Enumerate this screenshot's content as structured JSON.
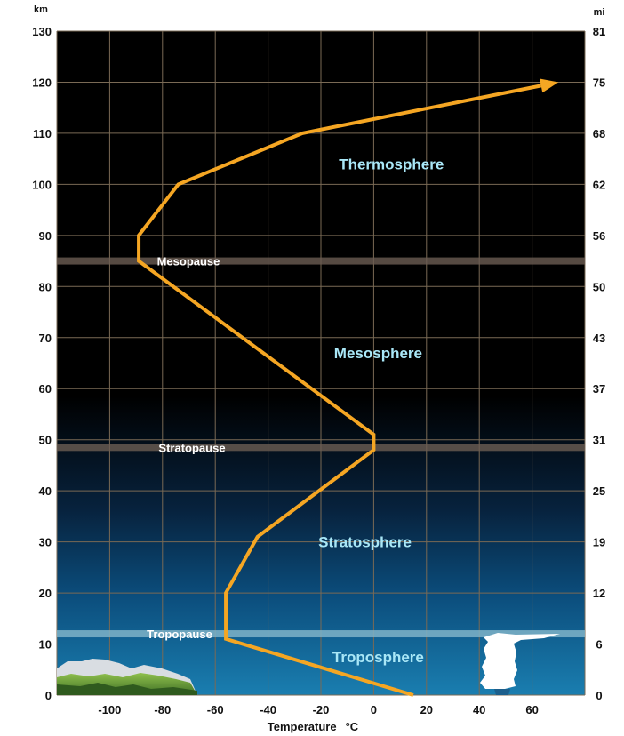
{
  "chart_data": {
    "type": "line",
    "xlabel": "Temperature",
    "xunit": "°C",
    "left_axis_unit": "km",
    "right_axis_unit": "mi",
    "xlim": [
      -120,
      80
    ],
    "ylim": [
      0,
      130
    ],
    "x_ticks": [
      -100,
      -80,
      -60,
      -40,
      -20,
      0,
      20,
      40,
      60
    ],
    "y_ticks_km": [
      0,
      10,
      20,
      30,
      40,
      50,
      60,
      70,
      80,
      90,
      100,
      110,
      120,
      130
    ],
    "y_ticks_mi": [
      0,
      6,
      12,
      19,
      25,
      31,
      37,
      43,
      50,
      56,
      62,
      68,
      75,
      81
    ],
    "grid": true,
    "series": [
      {
        "x": [
          15,
          -56,
          -56,
          -44,
          0,
          0,
          -89,
          -89,
          -74,
          -27,
          70
        ],
        "y": [
          0,
          11,
          20,
          31,
          48,
          51,
          85,
          90,
          100,
          110,
          120
        ]
      }
    ],
    "pauses": [
      {
        "label": "Tropopause",
        "altitude_km": 12
      },
      {
        "label": "Stratopause",
        "altitude_km": 48.5
      },
      {
        "label": "Mesopause",
        "altitude_km": 85
      }
    ],
    "layers": [
      {
        "label": "Troposphere",
        "x": 0,
        "y": 7.5
      },
      {
        "label": "Stratosphere",
        "x": -5,
        "y": 30
      },
      {
        "label": "Mesosphere",
        "x": 0,
        "y": 67
      },
      {
        "label": "Thermosphere",
        "x": 5,
        "y": 104
      }
    ],
    "colors": {
      "background": "#000000",
      "grid": "#7a6a55",
      "curve": "#f5a623",
      "pause_band": "#6b5d52",
      "tropopause_band": "#7fb3c8",
      "layer_text": "#a9e7f7"
    }
  }
}
